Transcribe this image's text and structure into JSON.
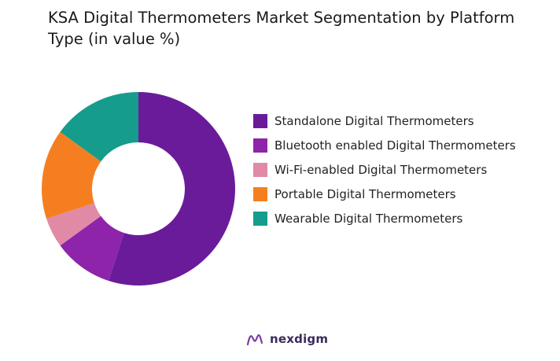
{
  "chart_data": {
    "type": "pie",
    "title": "KSA Digital Thermometers Market Segmentation by Platform Type (in value %)",
    "donut": true,
    "legend_position": "right",
    "categories": [
      "Standalone Digital Thermometers",
      "Bluetooth enabled Digital Thermometers",
      "Wi-Fi-enabled Digital Thermometers",
      "Portable Digital Thermometers",
      "Wearable Digital Thermometers"
    ],
    "values": [
      55,
      10,
      5,
      15,
      15
    ],
    "colors": [
      "#6a1b9a",
      "#8e24aa",
      "#e08aa6",
      "#f57f20",
      "#159c8c"
    ]
  },
  "brand": {
    "name": "nexdigm",
    "icon": "nexdigm-logo-icon"
  }
}
